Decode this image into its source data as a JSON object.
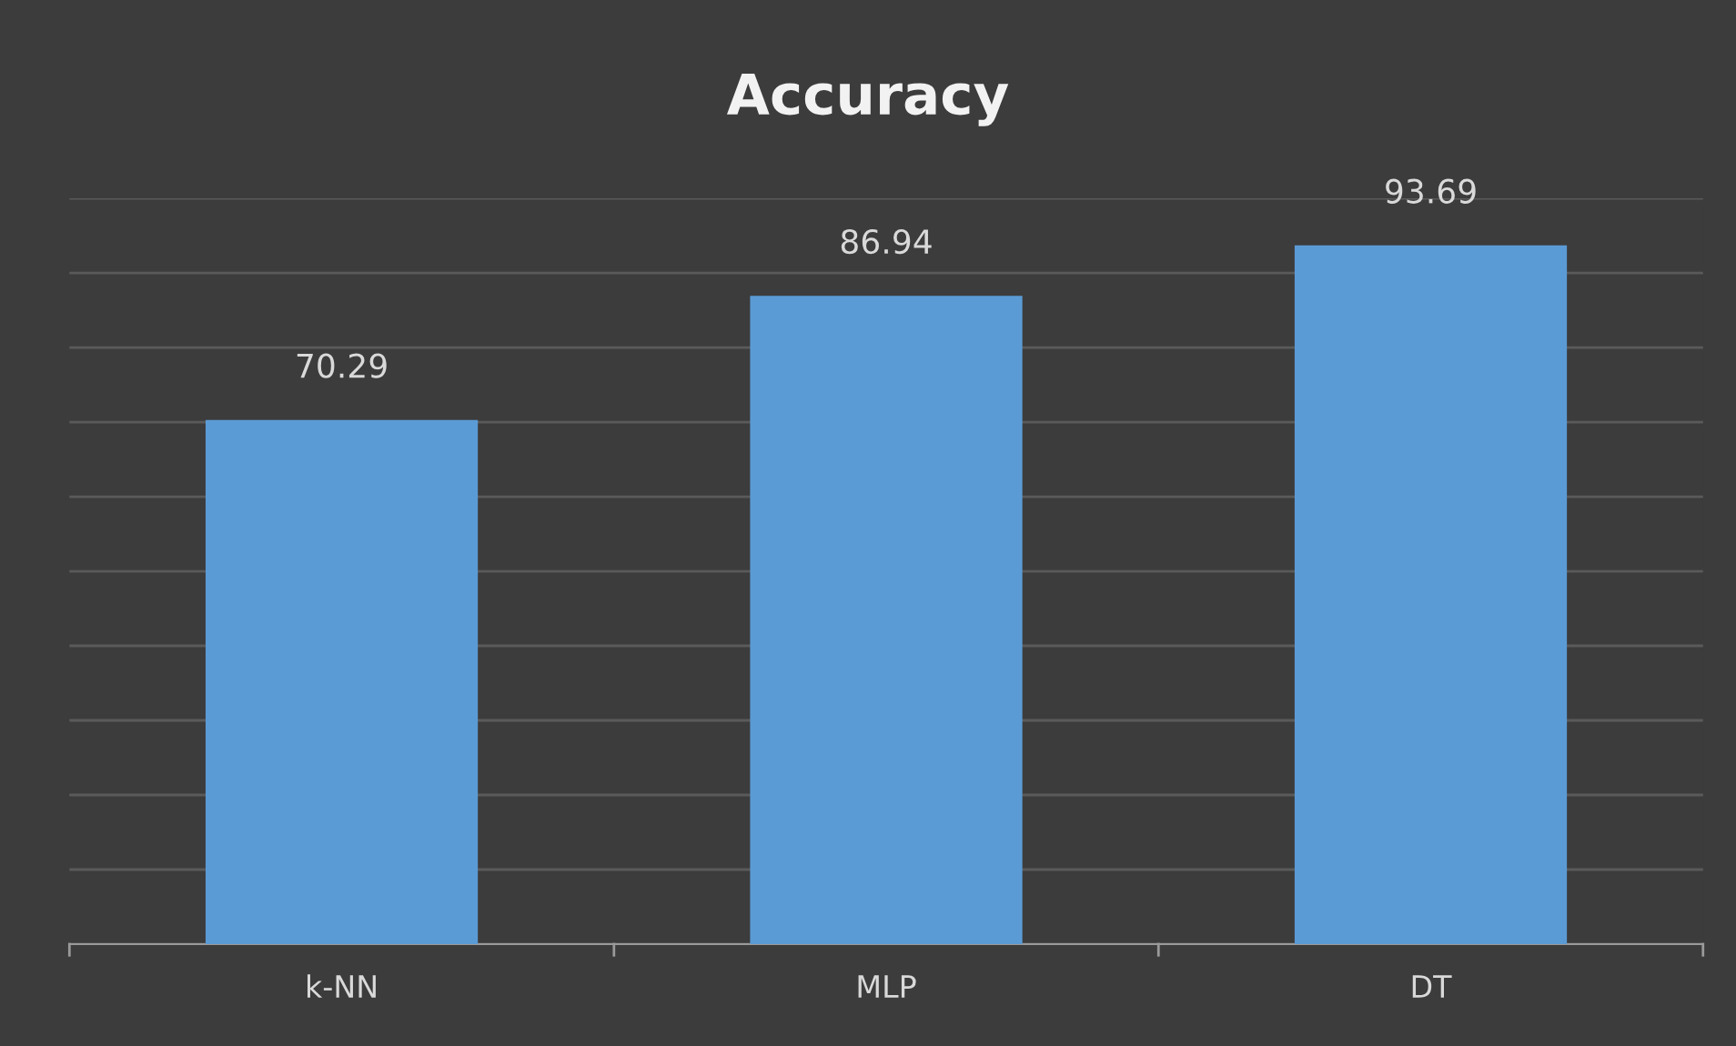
{
  "chart_data": {
    "type": "bar",
    "title": "Accuracy",
    "categories": [
      "k-NN",
      "MLP",
      "DT"
    ],
    "values": [
      70.29,
      86.94,
      93.69
    ],
    "color": "#5b9bd5",
    "ylim": [
      0,
      100
    ],
    "yticks": [
      {
        "value": 0,
        "label": null
      },
      {
        "value": 10,
        "label": null
      },
      {
        "value": 20,
        "label": null
      },
      {
        "value": 30,
        "label": null
      },
      {
        "value": 40,
        "label": null
      },
      {
        "value": 50,
        "label": null
      },
      {
        "value": 60,
        "label": null
      },
      {
        "value": 70,
        "label": null
      },
      {
        "value": 80,
        "label": null
      },
      {
        "value": 90,
        "label": null
      },
      {
        "value": 100,
        "label": null
      }
    ],
    "tick_labels": "x",
    "grid": "y",
    "data_labels": true
  }
}
